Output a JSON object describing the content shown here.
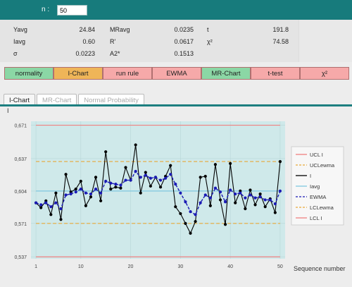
{
  "header": {
    "n_label": "n :",
    "n_value": "50"
  },
  "stats": [
    {
      "label": "Yavg",
      "value": "24.84"
    },
    {
      "label": "Iavg",
      "value": "0.60"
    },
    {
      "label": "σ",
      "value": "0.0223"
    },
    {
      "label": "MRavg",
      "value": "0.0235"
    },
    {
      "label": "R'",
      "value": "0.0617"
    },
    {
      "label": "A2*",
      "value": "0.1513"
    },
    {
      "label": "t",
      "value": "191.8"
    },
    {
      "label": "χ²",
      "value": "74.58"
    }
  ],
  "buttons": [
    {
      "label": "normality",
      "color": "#8bd7a5"
    },
    {
      "label": "I-Chart",
      "color": "#efb558"
    },
    {
      "label": "run rule",
      "color": "#f6a9a9"
    },
    {
      "label": "EWMA",
      "color": "#f6a9a9"
    },
    {
      "label": "MR-Chart",
      "color": "#8bd7a5"
    },
    {
      "label": "t-test",
      "color": "#f6a9a9"
    },
    {
      "label": "χ²",
      "color": "#f6a9a9"
    }
  ],
  "tabs": [
    "I-Chart",
    "MR-Chart",
    "Normal Probability"
  ],
  "chart_data": {
    "type": "line",
    "ylabel": "I",
    "xlabel": "Sequence number",
    "xlim": [
      0,
      50
    ],
    "ylim": [
      0.535,
      0.675
    ],
    "yticks": [
      0.537,
      0.571,
      0.604,
      0.637,
      0.671
    ],
    "ytick_labels": [
      "0,537",
      "0,571",
      "0,604",
      "0,637",
      "0,671"
    ],
    "xticks": [
      1,
      10,
      20,
      30,
      40,
      50
    ],
    "limits": {
      "ucl": 0.671,
      "uclewma": 0.634,
      "iavg": 0.604,
      "lclewma": 0.571,
      "lcl": 0.537
    },
    "x": [
      1,
      2,
      3,
      4,
      5,
      6,
      7,
      8,
      9,
      10,
      11,
      12,
      13,
      14,
      15,
      16,
      17,
      18,
      19,
      20,
      21,
      22,
      23,
      24,
      25,
      26,
      27,
      28,
      29,
      30,
      31,
      32,
      33,
      34,
      35,
      36,
      37,
      38,
      39,
      40,
      41,
      42,
      43,
      44,
      45,
      46,
      47,
      48,
      49,
      50
    ],
    "series": [
      {
        "name": "I",
        "color": "#000000",
        "values": [
          0.592,
          0.587,
          0.594,
          0.58,
          0.602,
          0.575,
          0.621,
          0.603,
          0.606,
          0.614,
          0.589,
          0.598,
          0.618,
          0.594,
          0.644,
          0.606,
          0.608,
          0.607,
          0.628,
          0.615,
          0.651,
          0.602,
          0.623,
          0.609,
          0.618,
          0.608,
          0.619,
          0.63,
          0.588,
          0.581,
          0.571,
          0.561,
          0.573,
          0.618,
          0.619,
          0.589,
          0.631,
          0.595,
          0.57,
          0.632,
          0.592,
          0.604,
          0.586,
          0.605,
          0.59,
          0.601,
          0.588,
          0.596,
          0.582,
          0.634
        ]
      },
      {
        "name": "EWMA",
        "color": "#1a1ab4",
        "values": [
          0.592,
          0.59,
          0.592,
          0.588,
          0.592,
          0.586,
          0.6,
          0.601,
          0.603,
          0.606,
          0.602,
          0.601,
          0.606,
          0.602,
          0.614,
          0.612,
          0.611,
          0.61,
          0.615,
          0.615,
          0.624,
          0.618,
          0.62,
          0.617,
          0.618,
          0.615,
          0.617,
          0.621,
          0.611,
          0.602,
          0.593,
          0.583,
          0.58,
          0.592,
          0.6,
          0.597,
          0.607,
          0.603,
          0.593,
          0.605,
          0.601,
          0.602,
          0.597,
          0.6,
          0.597,
          0.598,
          0.595,
          0.595,
          0.591,
          0.604
        ]
      }
    ],
    "legend": [
      {
        "name": "UCL I",
        "color": "#f08080",
        "style": "solid"
      },
      {
        "name": "UCLewma",
        "color": "#e8a838",
        "style": "dashed"
      },
      {
        "name": "I",
        "color": "#000000",
        "style": "solid"
      },
      {
        "name": "Iavg",
        "color": "#7fc8e0",
        "style": "solid"
      },
      {
        "name": "EWMA",
        "color": "#1a1ab4",
        "style": "dashed"
      },
      {
        "name": "LCLewma",
        "color": "#e8a838",
        "style": "dashed"
      },
      {
        "name": "LCL I",
        "color": "#f08080",
        "style": "solid"
      }
    ],
    "legend_position": "right"
  }
}
